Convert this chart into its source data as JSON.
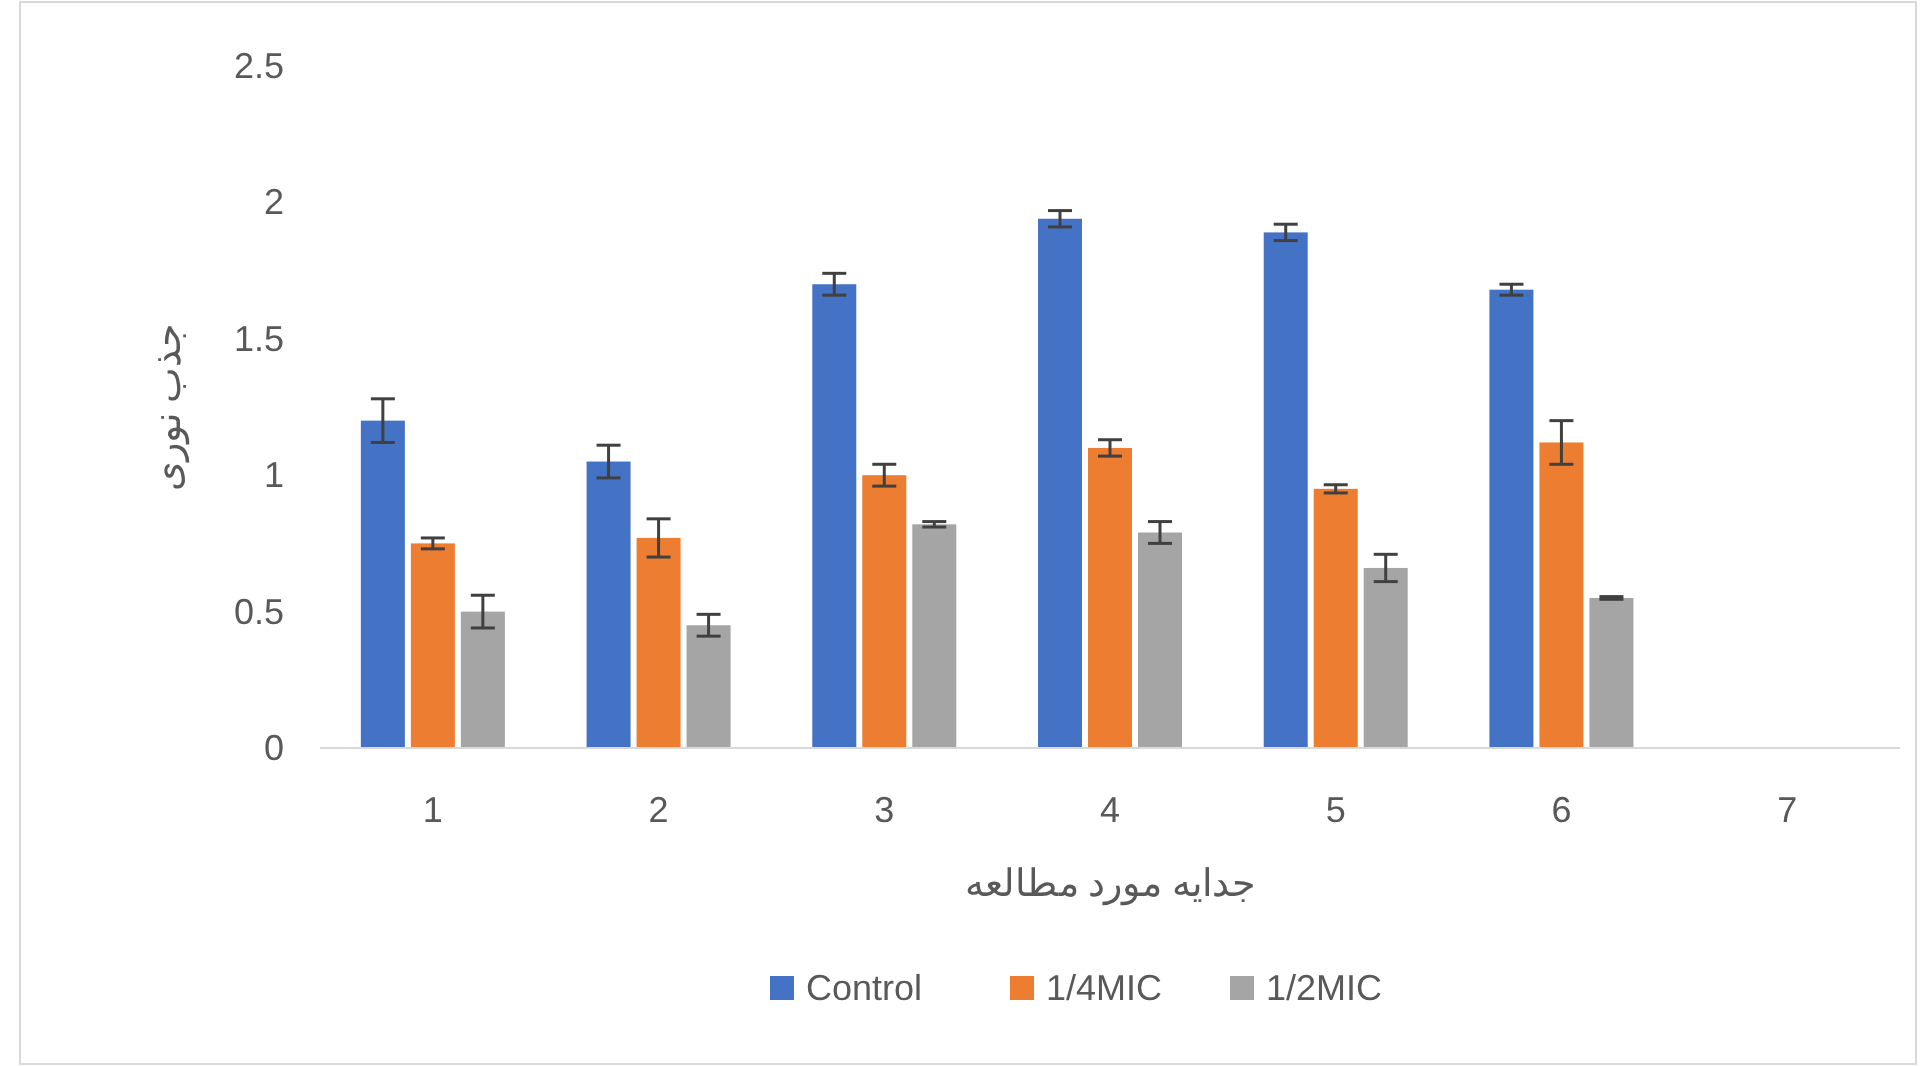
{
  "chart_data": {
    "type": "bar",
    "xlabel": "جدایه مورد مطالعه",
    "ylabel": "جذب نوری",
    "categories": [
      "1",
      "2",
      "3",
      "4",
      "5",
      "6",
      "7"
    ],
    "series": [
      {
        "name": "Control",
        "color": "#4472c4",
        "values": [
          1.2,
          1.05,
          1.7,
          1.94,
          1.89,
          1.68,
          null
        ],
        "errors": [
          0.08,
          0.06,
          0.04,
          0.03,
          0.03,
          0.02,
          null
        ]
      },
      {
        "name": "1/4MIC",
        "color": "#ed7d31",
        "values": [
          0.75,
          0.77,
          1.0,
          1.1,
          0.95,
          1.12,
          null
        ],
        "errors": [
          0.02,
          0.07,
          0.04,
          0.03,
          0.015,
          0.08,
          null
        ]
      },
      {
        "name": "1/2MIC",
        "color": "#a5a5a5",
        "values": [
          0.5,
          0.45,
          0.82,
          0.79,
          0.66,
          0.55,
          null
        ],
        "errors": [
          0.06,
          0.04,
          0.01,
          0.04,
          0.05,
          0.005,
          null
        ]
      }
    ],
    "ylim": [
      0,
      2.5
    ],
    "yticks": [
      0,
      0.5,
      1,
      1.5,
      2,
      2.5
    ],
    "grid": false,
    "legend": "bottom"
  }
}
